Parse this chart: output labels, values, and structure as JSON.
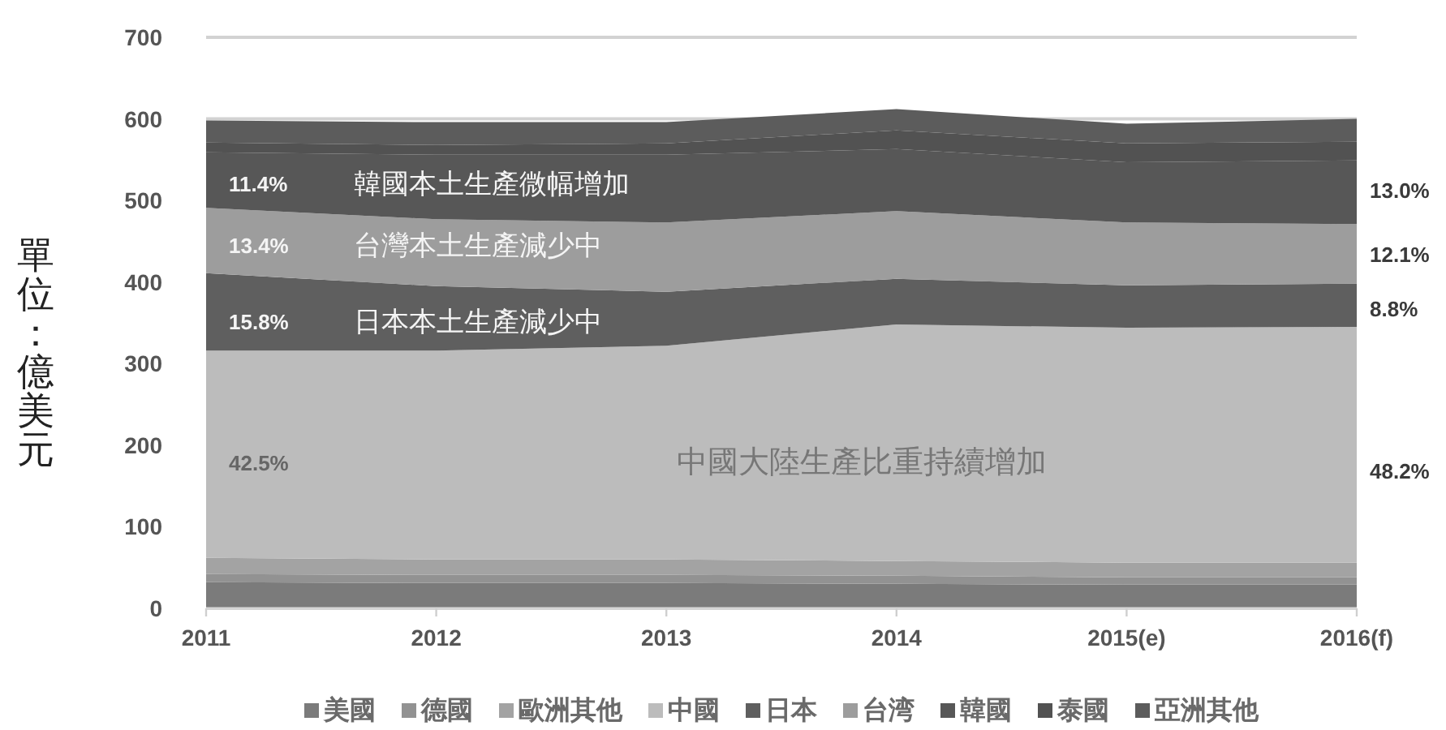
{
  "chart_data": {
    "type": "area",
    "stacked": true,
    "ylabel": "單位：億美元",
    "categories": [
      "2011",
      "2012",
      "2013",
      "2014",
      "2015(e)",
      "2016(f)"
    ],
    "series": [
      {
        "name": "美國",
        "color": "#7b7b7b",
        "values": [
          32,
          31,
          31,
          30,
          29,
          29
        ]
      },
      {
        "name": "德國",
        "color": "#929292",
        "values": [
          10,
          10,
          10,
          10,
          9,
          9
        ]
      },
      {
        "name": "歐洲其他",
        "color": "#a3a3a3",
        "values": [
          20,
          19,
          19,
          18,
          18,
          18
        ]
      },
      {
        "name": "中國",
        "color": "#bcbcbc",
        "values": [
          254,
          256,
          262,
          290,
          288,
          289
        ]
      },
      {
        "name": "日本",
        "color": "#5f5f5f",
        "values": [
          95,
          79,
          66,
          56,
          52,
          53
        ]
      },
      {
        "name": "台湾",
        "color": "#9d9d9d",
        "values": [
          80,
          82,
          85,
          83,
          77,
          73
        ]
      },
      {
        "name": "韓國",
        "color": "#575757",
        "values": [
          68,
          79,
          83,
          76,
          74,
          78
        ]
      },
      {
        "name": "泰國",
        "color": "#525252",
        "values": [
          12,
          12,
          14,
          23,
          23,
          23
        ]
      },
      {
        "name": "亞洲其他",
        "color": "#5c5c5c",
        "values": [
          27,
          28,
          26,
          26,
          24,
          28
        ]
      }
    ],
    "ylim": [
      0,
      700
    ],
    "yticks": [
      0,
      100,
      200,
      300,
      400,
      500,
      600,
      700
    ],
    "grid": "y",
    "legend": "bottom",
    "annotations": [
      {
        "text": "11.4%",
        "x": "2011",
        "y": 521
      },
      "韓國本土生產微幅增加",
      {
        "text": "13.4%",
        "x": "2011",
        "y": 445
      },
      "台灣本土生產減少中",
      {
        "text": "15.8%",
        "x": "2011",
        "y": 352
      },
      "日本本土生產減少中",
      {
        "text": "42.5%",
        "x": "2011",
        "y": 179
      },
      "中國大陸生產比重持續增加",
      {
        "text": "13.0%",
        "x": "2016(f)",
        "y": 513
      },
      {
        "text": "12.1%",
        "x": "2016(f)",
        "y": 435
      },
      {
        "text": "8.8%",
        "x": "2016(f)",
        "y": 368
      },
      {
        "text": "48.2%",
        "x": "2016(f)",
        "y": 169
      }
    ]
  }
}
